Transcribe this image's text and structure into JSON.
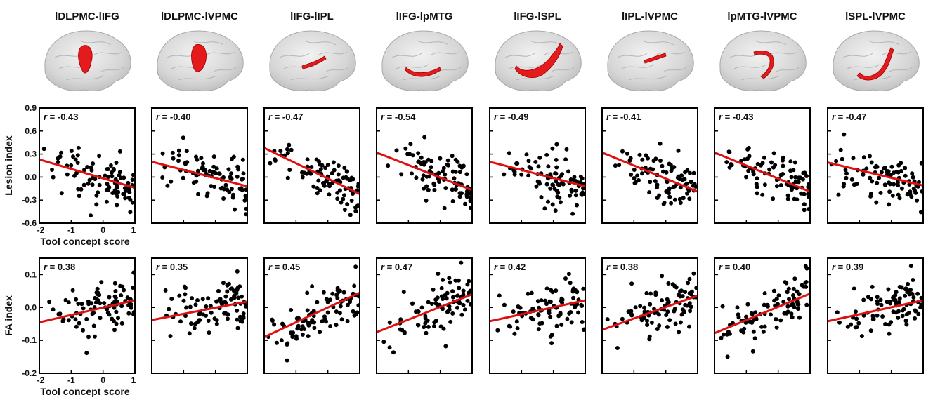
{
  "chart_data": {
    "type": "scatter",
    "row_ylabels": [
      "Lesion index",
      "FA index"
    ],
    "xlabel": "Tool concept score",
    "xlim": [
      -2,
      1
    ],
    "xticks": [
      "-2",
      "-1",
      "0",
      "1"
    ],
    "rows": [
      {
        "ylabel": "Lesion index",
        "ylim": [
          -0.6,
          0.9
        ],
        "yticks": [
          "0.9",
          "0.6",
          "0.3",
          "0.0",
          "-0.3",
          "-0.6"
        ],
        "ytick_values": [
          0.9,
          0.6,
          0.3,
          0.0,
          -0.3,
          -0.6
        ],
        "fits": [
          {
            "r_label": "r",
            "r_value": "= -0.43",
            "fit": [
              [
                -2,
                0.23
              ],
              [
                1,
                -0.14
              ]
            ]
          },
          {
            "r_label": "r",
            "r_value": "= -0.40",
            "fit": [
              [
                -2,
                0.2
              ],
              [
                1,
                -0.12
              ]
            ]
          },
          {
            "r_label": "r",
            "r_value": "= -0.47",
            "fit": [
              [
                -2,
                0.38
              ],
              [
                1,
                -0.22
              ]
            ]
          },
          {
            "r_label": "r",
            "r_value": "= -0.54",
            "fit": [
              [
                -2,
                0.32
              ],
              [
                1,
                -0.17
              ]
            ]
          },
          {
            "r_label": "r",
            "r_value": "= -0.49",
            "fit": [
              [
                -2,
                0.2
              ],
              [
                1,
                -0.12
              ]
            ]
          },
          {
            "r_label": "r",
            "r_value": "= -0.41",
            "fit": [
              [
                -2,
                0.32
              ],
              [
                1,
                -0.19
              ]
            ]
          },
          {
            "r_label": "r",
            "r_value": "= -0.43",
            "fit": [
              [
                -2,
                0.32
              ],
              [
                1,
                -0.19
              ]
            ]
          },
          {
            "r_label": "r",
            "r_value": "= -0.47",
            "fit": [
              [
                -2,
                0.19
              ],
              [
                1,
                -0.11
              ]
            ]
          }
        ]
      },
      {
        "ylabel": "FA index",
        "ylim": [
          -0.2,
          0.15
        ],
        "yticks": [
          "0.1",
          "0.0",
          "-0.1",
          "-0.2"
        ],
        "ytick_values": [
          0.1,
          0.0,
          -0.1,
          -0.2
        ],
        "fits": [
          {
            "r_label": "r",
            "r_value": "= 0.38",
            "fit": [
              [
                -2,
                -0.045
              ],
              [
                1,
                0.022
              ]
            ]
          },
          {
            "r_label": "r",
            "r_value": "= 0.35",
            "fit": [
              [
                -2,
                -0.038
              ],
              [
                1,
                0.018
              ]
            ]
          },
          {
            "r_label": "r",
            "r_value": "= 0.45",
            "fit": [
              [
                -2,
                -0.09
              ],
              [
                1,
                0.045
              ]
            ]
          },
          {
            "r_label": "r",
            "r_value": "= 0.47",
            "fit": [
              [
                -2,
                -0.075
              ],
              [
                1,
                0.04
              ]
            ]
          },
          {
            "r_label": "r",
            "r_value": "= 0.42",
            "fit": [
              [
                -2,
                -0.042
              ],
              [
                1,
                0.022
              ]
            ]
          },
          {
            "r_label": "r",
            "r_value": "= 0.38",
            "fit": [
              [
                -2,
                -0.068
              ],
              [
                1,
                0.036
              ]
            ]
          },
          {
            "r_label": "r",
            "r_value": "= 0.40",
            "fit": [
              [
                -2,
                -0.078
              ],
              [
                1,
                0.042
              ]
            ]
          },
          {
            "r_label": "r",
            "r_value": "= 0.39",
            "fit": [
              [
                -2,
                -0.042
              ],
              [
                1,
                0.022
              ]
            ]
          }
        ]
      }
    ],
    "columns": [
      "lDLPMC-lIFG",
      "lDLPMC-lVPMC",
      "lIFG-lIPL",
      "lIFG-lpMTG",
      "lIFG-lSPL",
      "lIPL-lVPMC",
      "lpMTG-lVPMC",
      "lSPL-lVPMC"
    ],
    "point_color": "#000000",
    "fit_color": "#e01010",
    "tract_color": "#e41a1c",
    "brain_color": "#d9d9d9"
  }
}
